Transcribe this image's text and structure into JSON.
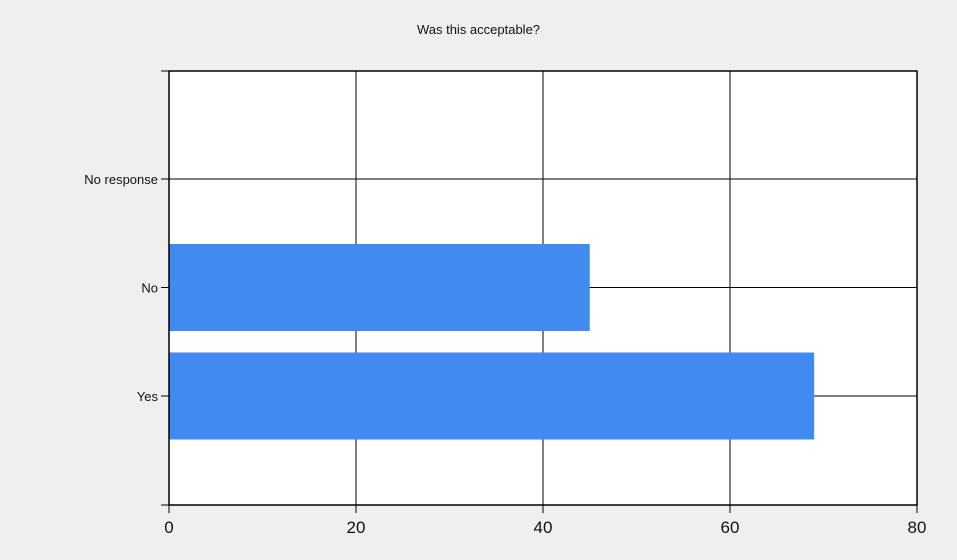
{
  "chart_data": {
    "type": "bar",
    "orientation": "horizontal",
    "title": "Was this acceptable?",
    "categories": [
      "Yes",
      "No",
      "No response"
    ],
    "values": [
      69,
      45,
      0
    ],
    "xlim": [
      0,
      80
    ],
    "x_ticks": [
      0,
      20,
      40,
      60,
      80
    ],
    "grid": true,
    "legend": "none",
    "bar_color": "#418aef",
    "plot_background": "#ffffff",
    "background": "#efefef"
  }
}
